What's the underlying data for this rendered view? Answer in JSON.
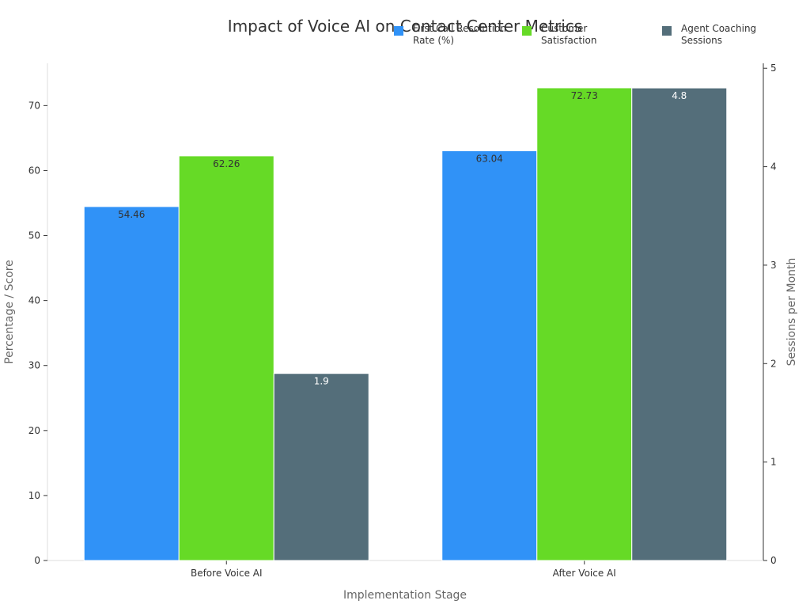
{
  "chart_data": {
    "type": "bar",
    "title": "Impact of Voice AI on Contact Center Metrics",
    "xlabel": "Implementation Stage",
    "ylabel": "Percentage / Score",
    "y2label": "Sessions per Month",
    "categories": [
      "Before Voice AI",
      "After Voice AI"
    ],
    "ylim": [
      0,
      76.5
    ],
    "y2lim": [
      0,
      5.05
    ],
    "yticks": [
      0,
      10,
      20,
      30,
      40,
      50,
      60,
      70
    ],
    "y2ticks": [
      0,
      1,
      2,
      3,
      4,
      5
    ],
    "legend_position": "top-right",
    "grid": false,
    "series": [
      {
        "name": "First Call Resolution Rate (%)",
        "axis": "left",
        "color": "#3092F7",
        "values": [
          54.46,
          63.04
        ],
        "labels": [
          "54.46",
          "63.04"
        ]
      },
      {
        "name": "Customer Satisfaction",
        "axis": "left",
        "color": "#66DA26",
        "values": [
          62.26,
          72.73
        ],
        "labels": [
          "62.26",
          "72.73"
        ]
      },
      {
        "name": "Agent Coaching Sessions",
        "axis": "right",
        "color": "#546E7A",
        "values": [
          1.9,
          4.8
        ],
        "labels": [
          "1.9",
          "4.8"
        ]
      }
    ]
  }
}
